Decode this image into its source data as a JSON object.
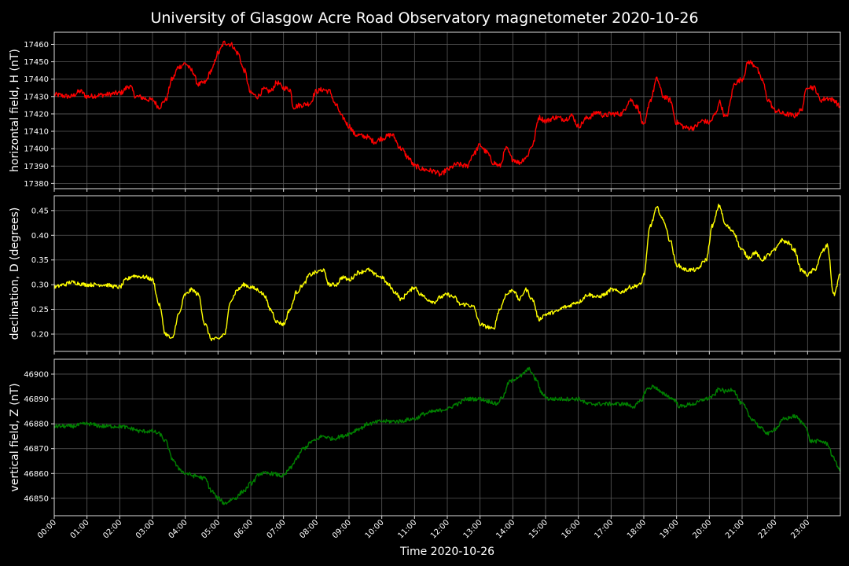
{
  "chart_data": {
    "type": "line",
    "title": "University of Glasgow Acre Road Observatory magnetometer 2020-10-26",
    "xlabel": "Time 2020-10-26",
    "x_unit": "hours",
    "xlim": [
      0,
      24
    ],
    "x_ticks": [
      "00:00",
      "01:00",
      "02:00",
      "03:00",
      "04:00",
      "05:00",
      "06:00",
      "07:00",
      "08:00",
      "09:00",
      "10:00",
      "11:00",
      "12:00",
      "13:00",
      "14:00",
      "15:00",
      "16:00",
      "17:00",
      "18:00",
      "19:00",
      "20:00",
      "21:00",
      "22:00",
      "23:00"
    ],
    "grid": true,
    "panels": [
      {
        "ylabel": "horizontal field, H (nT)",
        "color": "#ff0000",
        "ylim": [
          17377,
          17467
        ],
        "y_ticks": [
          17380,
          17390,
          17400,
          17410,
          17420,
          17430,
          17440,
          17450,
          17460
        ],
        "y_decimals": 0,
        "noise": 1.5,
        "points": [
          [
            0,
            17431
          ],
          [
            0.5,
            17430
          ],
          [
            0.8,
            17433
          ],
          [
            1.0,
            17430
          ],
          [
            1.5,
            17431
          ],
          [
            2.0,
            17432
          ],
          [
            2.3,
            17436
          ],
          [
            2.5,
            17430
          ],
          [
            3.0,
            17428
          ],
          [
            3.2,
            17424
          ],
          [
            3.4,
            17428
          ],
          [
            3.6,
            17440
          ],
          [
            3.8,
            17447
          ],
          [
            4.0,
            17449
          ],
          [
            4.2,
            17445
          ],
          [
            4.4,
            17437
          ],
          [
            4.6,
            17438
          ],
          [
            4.8,
            17445
          ],
          [
            5.0,
            17455
          ],
          [
            5.2,
            17461
          ],
          [
            5.4,
            17460
          ],
          [
            5.6,
            17455
          ],
          [
            5.8,
            17445
          ],
          [
            6.0,
            17432
          ],
          [
            6.2,
            17430
          ],
          [
            6.4,
            17434
          ],
          [
            6.6,
            17433
          ],
          [
            6.8,
            17438
          ],
          [
            7.0,
            17435
          ],
          [
            7.2,
            17434
          ],
          [
            7.3,
            17424
          ],
          [
            7.5,
            17425
          ],
          [
            7.8,
            17426
          ],
          [
            8.0,
            17433
          ],
          [
            8.2,
            17434
          ],
          [
            8.4,
            17433
          ],
          [
            8.6,
            17425
          ],
          [
            8.8,
            17418
          ],
          [
            9.0,
            17413
          ],
          [
            9.2,
            17408
          ],
          [
            9.5,
            17407
          ],
          [
            9.8,
            17404
          ],
          [
            10.0,
            17406
          ],
          [
            10.3,
            17408
          ],
          [
            10.6,
            17400
          ],
          [
            10.8,
            17395
          ],
          [
            11.0,
            17390
          ],
          [
            11.3,
            17388
          ],
          [
            11.6,
            17387
          ],
          [
            11.8,
            17385
          ],
          [
            12.0,
            17388
          ],
          [
            12.3,
            17391
          ],
          [
            12.6,
            17390
          ],
          [
            12.8,
            17397
          ],
          [
            13.0,
            17402
          ],
          [
            13.2,
            17398
          ],
          [
            13.4,
            17392
          ],
          [
            13.6,
            17390
          ],
          [
            13.8,
            17400
          ],
          [
            14.0,
            17394
          ],
          [
            14.2,
            17392
          ],
          [
            14.4,
            17395
          ],
          [
            14.6,
            17402
          ],
          [
            14.8,
            17418
          ],
          [
            15.0,
            17416
          ],
          [
            15.3,
            17418
          ],
          [
            15.6,
            17417
          ],
          [
            15.8,
            17419
          ],
          [
            16.0,
            17413
          ],
          [
            16.3,
            17418
          ],
          [
            16.6,
            17421
          ],
          [
            16.8,
            17419
          ],
          [
            17.0,
            17420
          ],
          [
            17.3,
            17420
          ],
          [
            17.6,
            17428
          ],
          [
            17.8,
            17424
          ],
          [
            18.0,
            17413
          ],
          [
            18.2,
            17428
          ],
          [
            18.4,
            17440
          ],
          [
            18.6,
            17430
          ],
          [
            18.8,
            17428
          ],
          [
            19.0,
            17415
          ],
          [
            19.3,
            17412
          ],
          [
            19.5,
            17412
          ],
          [
            19.8,
            17416
          ],
          [
            20.0,
            17415
          ],
          [
            20.2,
            17420
          ],
          [
            20.3,
            17427
          ],
          [
            20.5,
            17418
          ],
          [
            20.8,
            17438
          ],
          [
            21.0,
            17440
          ],
          [
            21.2,
            17450
          ],
          [
            21.4,
            17448
          ],
          [
            21.6,
            17440
          ],
          [
            21.8,
            17428
          ],
          [
            22.0,
            17422
          ],
          [
            22.3,
            17420
          ],
          [
            22.6,
            17419
          ],
          [
            22.8,
            17422
          ],
          [
            23.0,
            17436
          ],
          [
            23.2,
            17435
          ],
          [
            23.4,
            17428
          ],
          [
            23.6,
            17429
          ],
          [
            23.8,
            17428
          ],
          [
            24.0,
            17424
          ]
        ]
      },
      {
        "ylabel": "declination, D (degrees)",
        "color": "#ffff00",
        "ylim": [
          0.165,
          0.48
        ],
        "y_ticks": [
          0.2,
          0.25,
          0.3,
          0.35,
          0.4,
          0.45
        ],
        "y_decimals": 2,
        "noise": 0.004,
        "points": [
          [
            0,
            0.295
          ],
          [
            0.3,
            0.3
          ],
          [
            0.5,
            0.305
          ],
          [
            1.0,
            0.3
          ],
          [
            1.5,
            0.3
          ],
          [
            2.0,
            0.295
          ],
          [
            2.2,
            0.31
          ],
          [
            2.4,
            0.318
          ],
          [
            2.8,
            0.315
          ],
          [
            3.0,
            0.31
          ],
          [
            3.2,
            0.26
          ],
          [
            3.4,
            0.2
          ],
          [
            3.6,
            0.19
          ],
          [
            3.8,
            0.24
          ],
          [
            4.0,
            0.28
          ],
          [
            4.2,
            0.29
          ],
          [
            4.4,
            0.28
          ],
          [
            4.6,
            0.22
          ],
          [
            4.8,
            0.19
          ],
          [
            5.0,
            0.19
          ],
          [
            5.2,
            0.2
          ],
          [
            5.4,
            0.27
          ],
          [
            5.6,
            0.29
          ],
          [
            5.8,
            0.3
          ],
          [
            6.0,
            0.295
          ],
          [
            6.2,
            0.29
          ],
          [
            6.4,
            0.28
          ],
          [
            6.6,
            0.25
          ],
          [
            6.8,
            0.225
          ],
          [
            7.0,
            0.22
          ],
          [
            7.2,
            0.25
          ],
          [
            7.4,
            0.285
          ],
          [
            7.6,
            0.3
          ],
          [
            7.8,
            0.32
          ],
          [
            8.0,
            0.325
          ],
          [
            8.2,
            0.33
          ],
          [
            8.4,
            0.3
          ],
          [
            8.6,
            0.3
          ],
          [
            8.8,
            0.315
          ],
          [
            9.0,
            0.31
          ],
          [
            9.3,
            0.325
          ],
          [
            9.6,
            0.33
          ],
          [
            9.8,
            0.32
          ],
          [
            10.0,
            0.315
          ],
          [
            10.2,
            0.3
          ],
          [
            10.4,
            0.285
          ],
          [
            10.6,
            0.27
          ],
          [
            10.8,
            0.285
          ],
          [
            11.0,
            0.295
          ],
          [
            11.2,
            0.28
          ],
          [
            11.4,
            0.27
          ],
          [
            11.6,
            0.265
          ],
          [
            11.8,
            0.275
          ],
          [
            12.0,
            0.28
          ],
          [
            12.2,
            0.275
          ],
          [
            12.4,
            0.26
          ],
          [
            12.6,
            0.26
          ],
          [
            12.8,
            0.255
          ],
          [
            13.0,
            0.22
          ],
          [
            13.2,
            0.215
          ],
          [
            13.4,
            0.21
          ],
          [
            13.6,
            0.25
          ],
          [
            13.8,
            0.28
          ],
          [
            14.0,
            0.29
          ],
          [
            14.2,
            0.27
          ],
          [
            14.4,
            0.29
          ],
          [
            14.6,
            0.27
          ],
          [
            14.8,
            0.23
          ],
          [
            15.0,
            0.24
          ],
          [
            15.3,
            0.245
          ],
          [
            15.6,
            0.255
          ],
          [
            16.0,
            0.265
          ],
          [
            16.3,
            0.28
          ],
          [
            16.6,
            0.275
          ],
          [
            16.8,
            0.28
          ],
          [
            17.0,
            0.29
          ],
          [
            17.3,
            0.285
          ],
          [
            17.6,
            0.295
          ],
          [
            17.9,
            0.3
          ],
          [
            18.0,
            0.32
          ],
          [
            18.2,
            0.42
          ],
          [
            18.4,
            0.455
          ],
          [
            18.6,
            0.43
          ],
          [
            18.8,
            0.39
          ],
          [
            19.0,
            0.34
          ],
          [
            19.3,
            0.33
          ],
          [
            19.6,
            0.33
          ],
          [
            19.9,
            0.35
          ],
          [
            20.1,
            0.42
          ],
          [
            20.3,
            0.46
          ],
          [
            20.5,
            0.42
          ],
          [
            20.7,
            0.41
          ],
          [
            21.0,
            0.37
          ],
          [
            21.2,
            0.355
          ],
          [
            21.4,
            0.365
          ],
          [
            21.6,
            0.35
          ],
          [
            21.8,
            0.36
          ],
          [
            22.0,
            0.37
          ],
          [
            22.2,
            0.39
          ],
          [
            22.4,
            0.385
          ],
          [
            22.6,
            0.37
          ],
          [
            22.8,
            0.33
          ],
          [
            23.0,
            0.32
          ],
          [
            23.2,
            0.33
          ],
          [
            23.5,
            0.37
          ],
          [
            23.6,
            0.38
          ],
          [
            23.8,
            0.28
          ],
          [
            24.0,
            0.32
          ]
        ]
      },
      {
        "ylabel": "vertical field, Z (nT)",
        "color": "#008000",
        "ylim": [
          46843,
          46906
        ],
        "y_ticks": [
          46850,
          46860,
          46870,
          46880,
          46890,
          46900
        ],
        "y_decimals": 0,
        "noise": 0.8,
        "points": [
          [
            0,
            46879
          ],
          [
            0.5,
            46879
          ],
          [
            1.0,
            46880
          ],
          [
            1.5,
            46879
          ],
          [
            2.0,
            46879
          ],
          [
            2.4,
            46878
          ],
          [
            2.6,
            46877
          ],
          [
            3.0,
            46877
          ],
          [
            3.2,
            46876
          ],
          [
            3.4,
            46873
          ],
          [
            3.6,
            46866
          ],
          [
            3.8,
            46862
          ],
          [
            4.0,
            46860
          ],
          [
            4.3,
            46859
          ],
          [
            4.6,
            46858
          ],
          [
            4.8,
            46853
          ],
          [
            5.0,
            46850
          ],
          [
            5.2,
            46848
          ],
          [
            5.5,
            46850
          ],
          [
            5.8,
            46853
          ],
          [
            6.0,
            46856
          ],
          [
            6.3,
            46860
          ],
          [
            6.6,
            46860
          ],
          [
            7.0,
            46859
          ],
          [
            7.2,
            46862
          ],
          [
            7.4,
            46866
          ],
          [
            7.6,
            46870
          ],
          [
            7.9,
            46873
          ],
          [
            8.2,
            46875
          ],
          [
            8.5,
            46874
          ],
          [
            8.8,
            46875
          ],
          [
            9.0,
            46876
          ],
          [
            9.3,
            46878
          ],
          [
            9.6,
            46880
          ],
          [
            10.0,
            46881
          ],
          [
            10.5,
            46881
          ],
          [
            11.0,
            46882
          ],
          [
            11.3,
            46884
          ],
          [
            11.6,
            46885
          ],
          [
            12.0,
            46886
          ],
          [
            12.3,
            46888
          ],
          [
            12.6,
            46890
          ],
          [
            13.0,
            46890
          ],
          [
            13.3,
            46889
          ],
          [
            13.5,
            46888
          ],
          [
            13.7,
            46891
          ],
          [
            13.9,
            46897
          ],
          [
            14.2,
            46899
          ],
          [
            14.5,
            46902
          ],
          [
            14.7,
            46898
          ],
          [
            14.9,
            46892
          ],
          [
            15.1,
            46890
          ],
          [
            15.5,
            46890
          ],
          [
            16.0,
            46890
          ],
          [
            16.3,
            46888
          ],
          [
            16.6,
            46888
          ],
          [
            17.0,
            46888
          ],
          [
            17.4,
            46888
          ],
          [
            17.7,
            46887
          ],
          [
            17.9,
            46889
          ],
          [
            18.1,
            46894
          ],
          [
            18.3,
            46895
          ],
          [
            18.6,
            46892
          ],
          [
            18.9,
            46890
          ],
          [
            19.1,
            46887
          ],
          [
            19.5,
            46888
          ],
          [
            19.9,
            46890
          ],
          [
            20.1,
            46891
          ],
          [
            20.3,
            46894
          ],
          [
            20.5,
            46893
          ],
          [
            20.7,
            46894
          ],
          [
            21.0,
            46888
          ],
          [
            21.3,
            46882
          ],
          [
            21.6,
            46878
          ],
          [
            21.8,
            46876
          ],
          [
            22.0,
            46878
          ],
          [
            22.3,
            46882
          ],
          [
            22.6,
            46883
          ],
          [
            22.9,
            46880
          ],
          [
            23.1,
            46873
          ],
          [
            23.4,
            46873
          ],
          [
            23.6,
            46872
          ],
          [
            23.8,
            46866
          ],
          [
            24.0,
            46861
          ]
        ]
      }
    ]
  }
}
